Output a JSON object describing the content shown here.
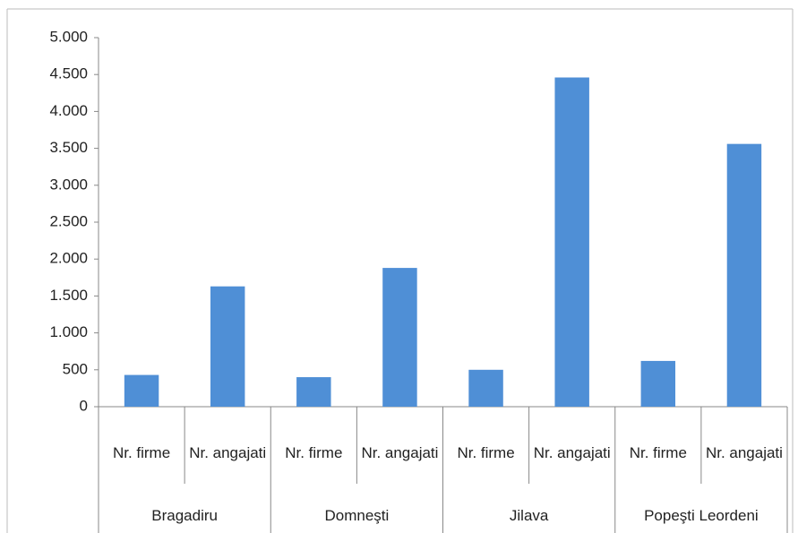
{
  "chart_data": {
    "type": "bar",
    "groups": [
      "Bragadiru",
      "Domneşti",
      "Jilava",
      "Popeşti Leordeni"
    ],
    "categories": [
      "Nr. firme",
      "Nr. angajati",
      "Nr. firme",
      "Nr. angajati",
      "Nr. firme",
      "Nr. angajati",
      "Nr. firme",
      "Nr. angajati"
    ],
    "values": [
      430,
      1630,
      400,
      1880,
      500,
      4460,
      620,
      3560
    ],
    "color": "#4f8fd6",
    "ylim": [
      0,
      5000
    ],
    "yticks": [
      0,
      500,
      {
        "value": 1000,
        "label": "1.000"
      },
      {
        "value": 1500,
        "label": "1.500"
      },
      {
        "value": 2000,
        "label": "2.000"
      },
      {
        "value": 2500,
        "label": "2.500"
      },
      {
        "value": 3000,
        "label": "3.000"
      },
      {
        "value": 3500,
        "label": "3.500"
      },
      {
        "value": 4000,
        "label": "4.000"
      },
      {
        "value": 4500,
        "label": "4.500"
      },
      {
        "value": 5000,
        "label": "5.000"
      }
    ]
  }
}
